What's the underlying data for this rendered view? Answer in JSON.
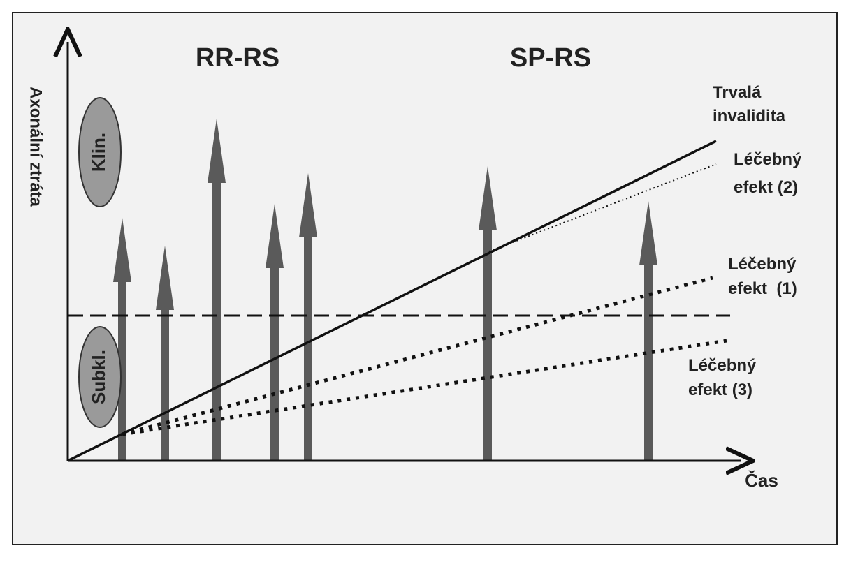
{
  "phases": [
    "RR-RS",
    "SP-RS"
  ],
  "axes": {
    "y_label": "Axonální ztráta",
    "x_label": "Čas"
  },
  "zones": [
    "Klin.",
    "Subkl."
  ],
  "line_labels": [
    {
      "lines": [
        "Trvalá",
        "invalidita"
      ]
    },
    {
      "lines": [
        "Léčebný",
        "efekt (2)"
      ]
    },
    {
      "lines": [
        "Léčebný",
        "efekt  (1)"
      ]
    },
    {
      "lines": [
        "Léčebný",
        "efekt (3)"
      ]
    }
  ]
}
